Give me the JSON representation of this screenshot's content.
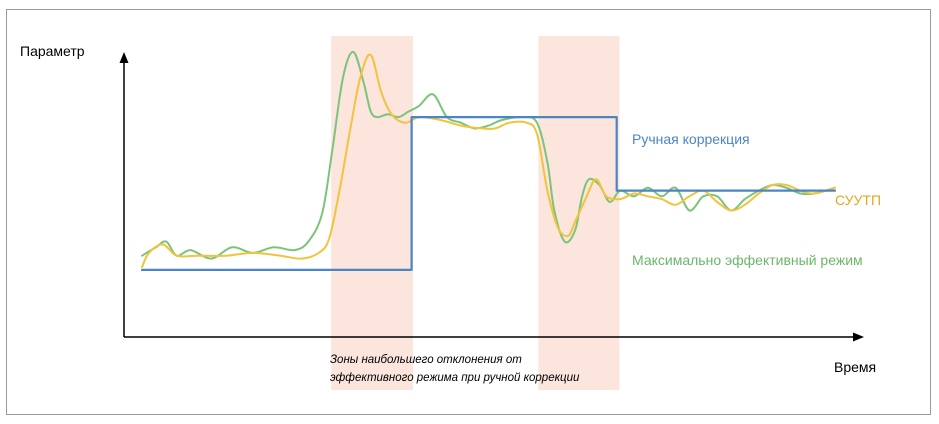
{
  "chart_data": {
    "type": "line",
    "ylabel": "Параметр",
    "xlabel": "Время",
    "colors": {
      "zone": "#fbe5dd",
      "manual": "#4a86c5",
      "auto": "#f2c33d",
      "max": "#7cc47a",
      "axis": "#000000"
    },
    "zones_label": [
      "Зоны наибольшего отклонения от",
      "эффективного режима при ручной коррекции"
    ],
    "zones": [
      {
        "x_start": 0.273,
        "x_end": 0.391
      },
      {
        "x_start": 0.572,
        "x_end": 0.689
      }
    ],
    "series": [
      {
        "name": "Ручная коррекция",
        "key": "manual",
        "step": true,
        "x": [
          0.0,
          0.389,
          0.389,
          0.685,
          0.685,
          1.0
        ],
        "y": [
          0.17,
          0.17,
          0.71,
          0.71,
          0.45,
          0.45
        ]
      },
      {
        "name": "СУУТП",
        "key": "auto",
        "x": [
          0.0,
          0.01,
          0.03,
          0.05,
          0.08,
          0.12,
          0.16,
          0.2,
          0.23,
          0.255,
          0.27,
          0.285,
          0.3,
          0.315,
          0.33,
          0.345,
          0.36,
          0.38,
          0.4,
          0.43,
          0.46,
          0.49,
          0.51,
          0.53,
          0.555,
          0.57,
          0.585,
          0.6,
          0.615,
          0.625,
          0.64,
          0.655,
          0.67,
          0.69,
          0.71,
          0.73,
          0.75,
          0.77,
          0.79,
          0.81,
          0.83,
          0.85,
          0.87,
          0.89,
          0.91,
          0.93,
          0.95,
          0.97,
          1.0
        ],
        "y": [
          0.18,
          0.23,
          0.26,
          0.22,
          0.22,
          0.22,
          0.23,
          0.22,
          0.21,
          0.23,
          0.28,
          0.45,
          0.66,
          0.85,
          0.93,
          0.8,
          0.72,
          0.69,
          0.71,
          0.7,
          0.68,
          0.67,
          0.67,
          0.69,
          0.69,
          0.65,
          0.45,
          0.32,
          0.29,
          0.34,
          0.42,
          0.49,
          0.43,
          0.42,
          0.44,
          0.43,
          0.42,
          0.4,
          0.43,
          0.45,
          0.41,
          0.38,
          0.4,
          0.44,
          0.47,
          0.47,
          0.45,
          0.44,
          0.46
        ]
      },
      {
        "name": "Максимально эффективный режим",
        "key": "max",
        "x": [
          0.0,
          0.02,
          0.035,
          0.05,
          0.07,
          0.1,
          0.13,
          0.16,
          0.19,
          0.22,
          0.24,
          0.26,
          0.275,
          0.29,
          0.305,
          0.32,
          0.33,
          0.34,
          0.355,
          0.37,
          0.385,
          0.4,
          0.42,
          0.44,
          0.46,
          0.48,
          0.5,
          0.52,
          0.55,
          0.57,
          0.585,
          0.595,
          0.61,
          0.625,
          0.635,
          0.645,
          0.66,
          0.675,
          0.69,
          0.71,
          0.73,
          0.75,
          0.77,
          0.79,
          0.81,
          0.83,
          0.85,
          0.87,
          0.89,
          0.91,
          0.93,
          0.95,
          0.97,
          1.0
        ],
        "y": [
          0.22,
          0.25,
          0.27,
          0.22,
          0.24,
          0.21,
          0.25,
          0.23,
          0.25,
          0.24,
          0.27,
          0.37,
          0.6,
          0.85,
          0.94,
          0.83,
          0.73,
          0.71,
          0.72,
          0.71,
          0.73,
          0.75,
          0.79,
          0.71,
          0.69,
          0.67,
          0.68,
          0.7,
          0.71,
          0.69,
          0.55,
          0.38,
          0.27,
          0.31,
          0.43,
          0.49,
          0.47,
          0.41,
          0.45,
          0.43,
          0.46,
          0.43,
          0.46,
          0.38,
          0.43,
          0.43,
          0.38,
          0.42,
          0.45,
          0.47,
          0.46,
          0.44,
          0.44,
          0.46
        ]
      }
    ]
  }
}
